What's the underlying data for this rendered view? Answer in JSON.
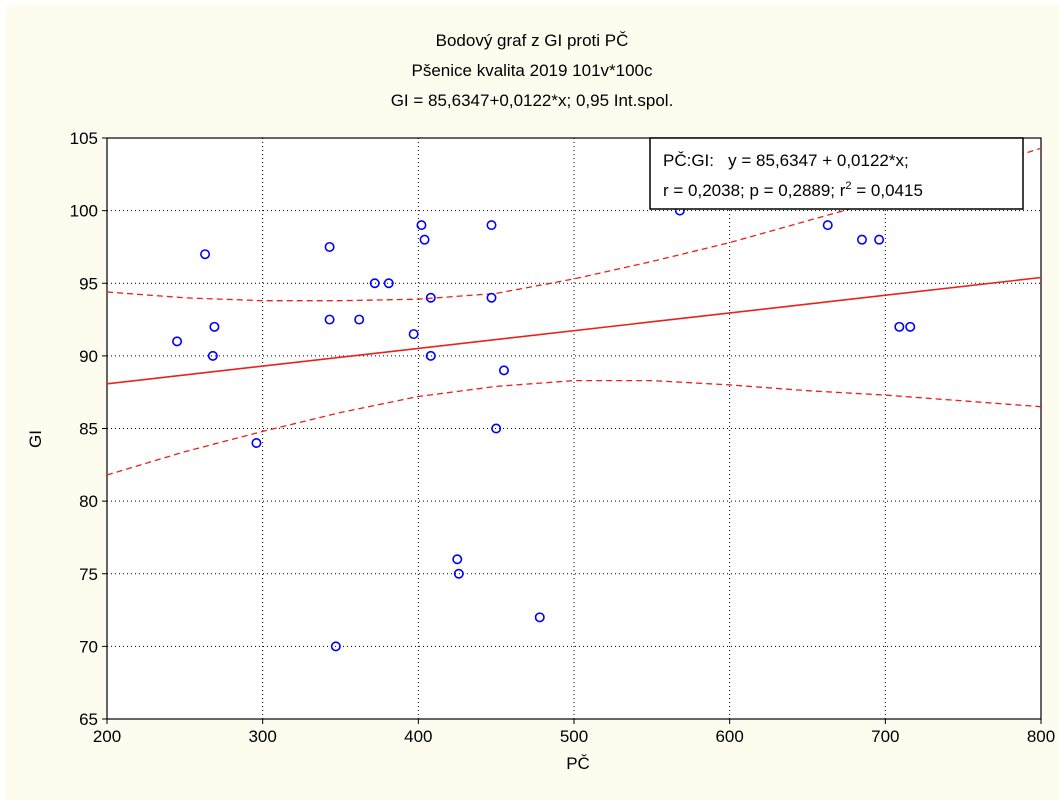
{
  "chart_data": {
    "type": "scatter",
    "title_lines": [
      "Bodový graf z GI proti PČ",
      "Pšenice kvalita 2019 101v*100c",
      "GI = 85,6347+0,0122*x; 0,95 Int.spol."
    ],
    "xlabel": "PČ",
    "ylabel": "GI",
    "xlim": [
      200,
      800
    ],
    "ylim": [
      65,
      105
    ],
    "xticks": [
      200,
      300,
      400,
      500,
      600,
      700,
      800
    ],
    "yticks": [
      65,
      70,
      75,
      80,
      85,
      90,
      95,
      100,
      105
    ],
    "points": [
      {
        "x": 245,
        "y": 91
      },
      {
        "x": 263,
        "y": 97
      },
      {
        "x": 268,
        "y": 90
      },
      {
        "x": 269,
        "y": 92
      },
      {
        "x": 296,
        "y": 84
      },
      {
        "x": 343,
        "y": 97.5
      },
      {
        "x": 343,
        "y": 92.5
      },
      {
        "x": 347,
        "y": 70
      },
      {
        "x": 372,
        "y": 95
      },
      {
        "x": 362,
        "y": 92.5
      },
      {
        "x": 381,
        "y": 95
      },
      {
        "x": 397,
        "y": 91.5
      },
      {
        "x": 402,
        "y": 99
      },
      {
        "x": 404,
        "y": 98
      },
      {
        "x": 408,
        "y": 94
      },
      {
        "x": 408,
        "y": 90
      },
      {
        "x": 425,
        "y": 76
      },
      {
        "x": 426,
        "y": 75
      },
      {
        "x": 447,
        "y": 99
      },
      {
        "x": 447,
        "y": 94
      },
      {
        "x": 450,
        "y": 85
      },
      {
        "x": 455,
        "y": 89
      },
      {
        "x": 478,
        "y": 72
      },
      {
        "x": 568,
        "y": 100
      },
      {
        "x": 663,
        "y": 99
      },
      {
        "x": 685,
        "y": 98
      },
      {
        "x": 696,
        "y": 98
      },
      {
        "x": 709,
        "y": 92
      },
      {
        "x": 716,
        "y": 92
      }
    ],
    "regression": {
      "intercept": 85.6347,
      "slope": 0.0122
    },
    "confidence_upper": [
      [
        200,
        94.4
      ],
      [
        250,
        94.0
      ],
      [
        300,
        93.8
      ],
      [
        350,
        93.8
      ],
      [
        400,
        93.9
      ],
      [
        450,
        94.3
      ],
      [
        500,
        95.3
      ],
      [
        550,
        96.5
      ],
      [
        600,
        97.8
      ],
      [
        650,
        99.3
      ],
      [
        700,
        100.8
      ],
      [
        750,
        102.6
      ],
      [
        800,
        104.3
      ]
    ],
    "confidence_lower": [
      [
        200,
        81.8
      ],
      [
        250,
        83.4
      ],
      [
        300,
        84.8
      ],
      [
        350,
        86.1
      ],
      [
        400,
        87.2
      ],
      [
        450,
        87.9
      ],
      [
        500,
        88.3
      ],
      [
        550,
        88.3
      ],
      [
        600,
        88.0
      ],
      [
        650,
        87.6
      ],
      [
        700,
        87.3
      ],
      [
        750,
        86.9
      ],
      [
        800,
        86.5
      ]
    ],
    "legend": {
      "line1": "PČ:GI:   y = 85,6347 + 0,0122*x;",
      "line2_prefix": "r = 0,2038; p = 0,2889; r",
      "line2_sup": "2",
      "line2_suffix": " = 0,0415",
      "placement": "top-right"
    },
    "colors": {
      "points": "#0000ff",
      "regression": "#e8211b",
      "confidence": "#e8211b",
      "plot_background": "#ffffff",
      "figure_background": "#fdfcef",
      "grid": "#000000"
    },
    "grid": true
  }
}
